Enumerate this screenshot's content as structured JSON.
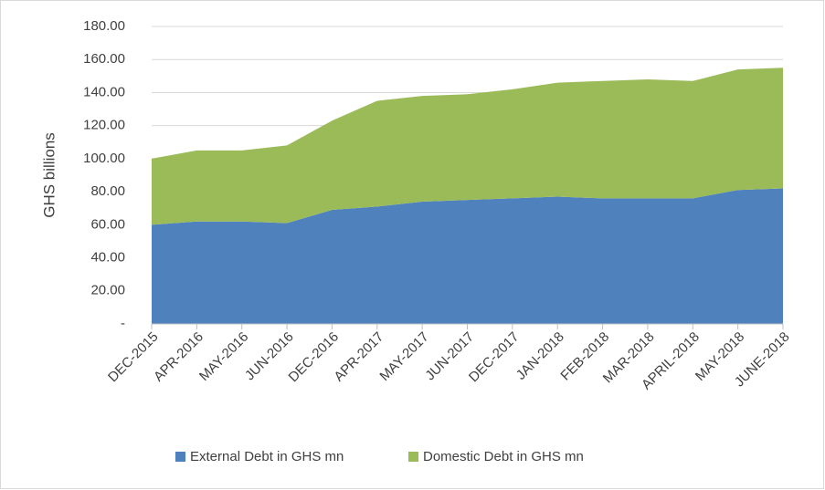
{
  "chart_data": {
    "type": "stacked_area",
    "y_label": "GHS billions",
    "categories": [
      "DEC-2015",
      "APR-2016",
      "MAY-2016",
      "JUN-2016",
      "DEC-2016",
      "APR-2017",
      "MAY-2017",
      "JUN-2017",
      "DEC-2017",
      "JAN-2018",
      "FEB-2018",
      "MAR-2018",
      "APRIL-2018",
      "MAY-2018",
      "JUNE-2018"
    ],
    "series": [
      {
        "name": "External Debt in GHS mn",
        "color": "#4f81bd",
        "values": [
          60,
          62,
          62,
          61,
          69,
          71,
          74,
          75,
          76,
          77,
          76,
          76,
          76,
          81,
          82
        ]
      },
      {
        "name": "Domestic Debt in GHS mn",
        "color": "#9bbb59",
        "values": [
          40,
          43,
          43,
          47,
          54,
          64,
          64,
          64,
          66,
          69,
          71,
          72,
          71,
          73,
          73
        ]
      }
    ],
    "ylim": [
      0,
      180
    ],
    "yticks": [
      {
        "value": 0,
        "label": "-"
      },
      {
        "value": 20,
        "label": "20.00"
      },
      {
        "value": 40,
        "label": "40.00"
      },
      {
        "value": 60,
        "label": "60.00"
      },
      {
        "value": 80,
        "label": "80.00"
      },
      {
        "value": 100,
        "label": "100.00"
      },
      {
        "value": 120,
        "label": "120.00"
      },
      {
        "value": 140,
        "label": "140.00"
      },
      {
        "value": 160,
        "label": "160.00"
      },
      {
        "value": 180,
        "label": "180.00"
      }
    ],
    "grid": true,
    "legend": "bottom"
  }
}
